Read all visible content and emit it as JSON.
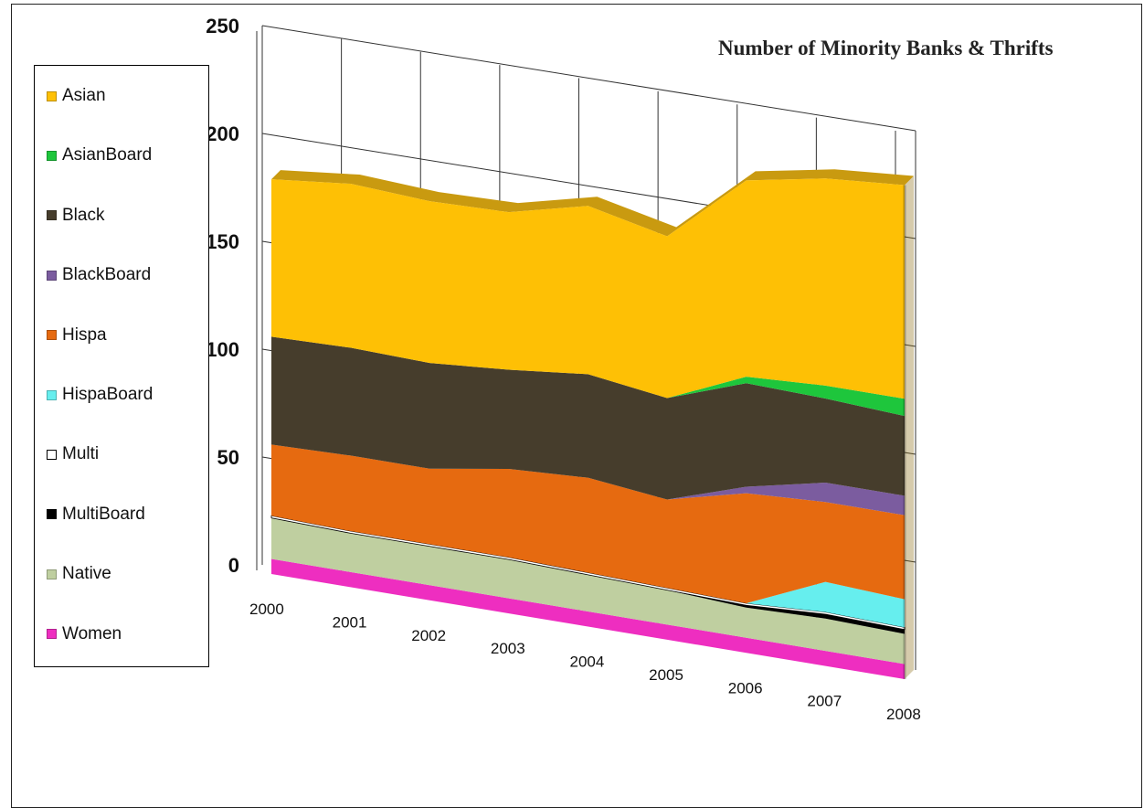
{
  "chart_data": {
    "type": "area",
    "stacked": true,
    "view": "3d",
    "title": "Number of Minority Banks & Thrifts",
    "xlabel": "",
    "ylabel": "",
    "ylim": [
      0,
      250
    ],
    "yticks": [
      0,
      50,
      100,
      150,
      200,
      250
    ],
    "grid": true,
    "legend_position": "left",
    "categories": [
      "2000",
      "2001",
      "2002",
      "2003",
      "2004",
      "2005",
      "2006",
      "2007",
      "2008"
    ],
    "series": [
      {
        "name": "Women",
        "color": "#ee2ec0",
        "values": [
          7,
          7,
          7,
          7,
          7,
          7,
          7,
          7,
          7
        ]
      },
      {
        "name": "Native",
        "color": "#bfcfa0",
        "values": [
          19,
          18,
          18,
          18,
          17,
          16,
          14,
          15,
          14
        ]
      },
      {
        "name": "MultiBoard",
        "color": "#000000",
        "values": [
          0,
          0,
          0,
          0,
          0,
          0,
          1,
          2,
          2
        ]
      },
      {
        "name": "Multi",
        "color": "#ffffff",
        "values": [
          1,
          1,
          1,
          1,
          1,
          1,
          1,
          1,
          1
        ]
      },
      {
        "name": "HispaBoard",
        "color": "#66eeee",
        "values": [
          0,
          0,
          0,
          0,
          0,
          0,
          0,
          14,
          13
        ]
      },
      {
        "name": "Hispa",
        "color": "#e66a10",
        "values": [
          33,
          35,
          35,
          41,
          44,
          41,
          51,
          37,
          39
        ]
      },
      {
        "name": "BlackBoard",
        "color": "#7b5c9f",
        "values": [
          0,
          0,
          0,
          0,
          0,
          0,
          3,
          9,
          9
        ]
      },
      {
        "name": "Black",
        "color": "#463d2c",
        "values": [
          50,
          50,
          49,
          46,
          48,
          47,
          48,
          39,
          37
        ]
      },
      {
        "name": "AsianBoard",
        "color": "#1ec63c",
        "values": [
          0,
          0,
          0,
          0,
          0,
          0,
          3,
          6,
          8
        ]
      },
      {
        "name": "Asian",
        "color": "#fec005",
        "values": [
          73,
          76,
          75,
          73,
          78,
          75,
          91,
          96,
          99
        ]
      }
    ]
  },
  "legend": {
    "items": [
      {
        "label": "Asian",
        "color": "#fec005"
      },
      {
        "label": "AsianBoard",
        "color": "#1ec63c"
      },
      {
        "label": "Black",
        "color": "#463d2c"
      },
      {
        "label": "BlackBoard",
        "color": "#7b5c9f"
      },
      {
        "label": "Hispa",
        "color": "#e66a10"
      },
      {
        "label": "HispaBoard",
        "color": "#66eeee"
      },
      {
        "label": "Multi",
        "color": "#ffffff"
      },
      {
        "label": "MultiBoard",
        "color": "#000000"
      },
      {
        "label": "Native",
        "color": "#bfcfa0"
      },
      {
        "label": "Women",
        "color": "#ee2ec0"
      }
    ]
  }
}
